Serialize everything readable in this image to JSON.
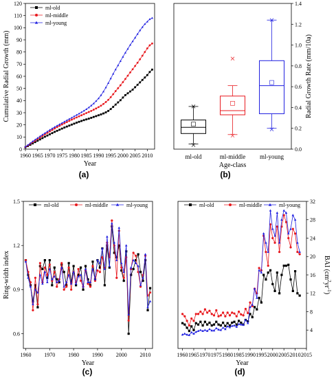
{
  "chart_data": [
    {
      "panel": "(a)",
      "type": "line",
      "xlabel": "Year",
      "ylabel": "Cumulative Radial Growth (mm)",
      "xlim": [
        1960,
        2013
      ],
      "ylim": [
        0,
        120
      ],
      "xticks": [
        1960,
        1965,
        1970,
        1975,
        1980,
        1985,
        1990,
        1995,
        2000,
        2005,
        2010
      ],
      "yticks": [
        0,
        10,
        20,
        30,
        40,
        50,
        60,
        70,
        80,
        90,
        100,
        110,
        120
      ],
      "legend_position": "top-left",
      "x": [
        1960,
        1961,
        1962,
        1963,
        1964,
        1965,
        1966,
        1967,
        1968,
        1969,
        1970,
        1971,
        1972,
        1973,
        1974,
        1975,
        1976,
        1977,
        1978,
        1979,
        1980,
        1981,
        1982,
        1983,
        1984,
        1985,
        1986,
        1987,
        1988,
        1989,
        1990,
        1991,
        1992,
        1993,
        1994,
        1995,
        1996,
        1997,
        1998,
        1999,
        2000,
        2001,
        2002,
        2003,
        2004,
        2005,
        2006,
        2007,
        2008,
        2009,
        2010,
        2011,
        2012
      ],
      "series": [
        {
          "name": "ml-old",
          "color": "#000000",
          "marker": "square",
          "values": [
            1.5,
            2.5,
            3.6,
            4.7,
            5.8,
            6.9,
            8.0,
            9.1,
            10.2,
            11.2,
            12.2,
            13.2,
            14.2,
            15.1,
            16.0,
            16.9,
            17.8,
            18.6,
            19.4,
            20.2,
            21.0,
            21.8,
            22.5,
            23.2,
            23.9,
            24.5,
            25.1,
            25.8,
            26.5,
            27.2,
            27.9,
            28.6,
            29.4,
            30.3,
            31.5,
            33.0,
            34.8,
            36.7,
            38.5,
            40.3,
            42.5,
            44.5,
            46.0,
            47.5,
            49.0,
            51.0,
            53.0,
            55.0,
            57.0,
            59.0,
            61.0,
            63.5,
            65.5
          ]
        },
        {
          "name": "ml-middle",
          "color": "#e8191e",
          "marker": "circle",
          "values": [
            1.8,
            3.0,
            4.4,
            5.7,
            7.0,
            8.3,
            9.6,
            10.9,
            12.2,
            13.4,
            14.6,
            15.8,
            17.0,
            18.1,
            19.2,
            20.3,
            21.3,
            22.3,
            23.3,
            24.3,
            25.2,
            26.1,
            27.0,
            27.9,
            28.8,
            29.7,
            30.6,
            31.5,
            32.5,
            33.5,
            34.6,
            35.8,
            37.2,
            38.8,
            40.6,
            42.8,
            45.2,
            47.8,
            50.2,
            52.6,
            55.2,
            57.8,
            60.5,
            63.2,
            65.8,
            68.5,
            71.2,
            74.0,
            77.0,
            80.0,
            83.0,
            85.5,
            87.0
          ]
        },
        {
          "name": "ml-young",
          "color": "#1f1fe0",
          "marker": "triangle",
          "values": [
            2.0,
            3.4,
            4.9,
            6.4,
            7.8,
            9.2,
            10.6,
            11.9,
            13.2,
            14.5,
            15.8,
            17.0,
            18.2,
            19.3,
            20.4,
            21.5,
            22.6,
            23.7,
            24.8,
            25.9,
            27.0,
            28.1,
            29.2,
            30.4,
            31.6,
            32.9,
            34.3,
            35.9,
            37.6,
            39.6,
            41.8,
            44.4,
            47.4,
            50.8,
            54.4,
            58.2,
            62.0,
            65.6,
            69.0,
            72.5,
            76.0,
            79.4,
            82.6,
            85.8,
            88.8,
            91.8,
            94.8,
            97.8,
            100.5,
            103.0,
            105.0,
            107.0,
            108.0
          ]
        }
      ]
    },
    {
      "panel": "(b)",
      "type": "box",
      "xlabel": "Age-class",
      "ylabel": "Radial Growth Rate (mm/10a)",
      "ylim": [
        0,
        1.4
      ],
      "yticks": [
        0.0,
        0.2,
        0.4,
        0.6,
        0.8,
        1.0,
        1.2,
        1.4
      ],
      "categories": [
        "ml-old",
        "ml-middle",
        "ml-young"
      ],
      "boxes": [
        {
          "name": "ml-old",
          "color": "#000000",
          "whisker_low": 0.05,
          "q1": 0.15,
          "median": 0.21,
          "q3": 0.28,
          "whisker_high": 0.41,
          "mean": 0.24,
          "min": 0.04,
          "max": 0.41
        },
        {
          "name": "ml-middle",
          "color": "#e8191e",
          "whisker_low": 0.14,
          "q1": 0.33,
          "median": 0.37,
          "q3": 0.51,
          "whisker_high": 0.61,
          "mean": 0.44,
          "min": 0.13,
          "max": 0.87
        },
        {
          "name": "ml-young",
          "color": "#1f1fe0",
          "whisker_low": 0.2,
          "q1": 0.34,
          "median": 0.61,
          "q3": 0.85,
          "whisker_high": 1.24,
          "mean": 0.64,
          "min": 0.19,
          "max": 1.24
        }
      ]
    },
    {
      "panel": "(c)",
      "type": "line",
      "xlabel": "Year",
      "ylabel": "Ring-width index",
      "xlim": [
        1959,
        2013
      ],
      "ylim": [
        0.5,
        1.5
      ],
      "xticks": [
        1960,
        1970,
        1980,
        1990,
        2000,
        2010
      ],
      "yticks": [
        0.6,
        0.9,
        1.2,
        1.5
      ],
      "legend_position": "top",
      "x": [
        1960,
        1961,
        1962,
        1963,
        1964,
        1965,
        1966,
        1967,
        1968,
        1969,
        1970,
        1971,
        1972,
        1973,
        1974,
        1975,
        1976,
        1977,
        1978,
        1979,
        1980,
        1981,
        1982,
        1983,
        1984,
        1985,
        1986,
        1987,
        1988,
        1989,
        1990,
        1991,
        1992,
        1993,
        1994,
        1995,
        1996,
        1997,
        1998,
        1999,
        2000,
        2001,
        2002,
        2003,
        2004,
        2005,
        2006,
        2007,
        2008,
        2009,
        2010,
        2011,
        2012
      ],
      "series": [
        {
          "name": "ml-old",
          "color": "#000000",
          "marker": "square",
          "values": [
            1.1,
            1.0,
            0.93,
            0.82,
            0.93,
            0.78,
            1.06,
            1.04,
            1.1,
            0.98,
            1.1,
            0.93,
            1.05,
            0.97,
            0.95,
            1.07,
            1.02,
            0.93,
            1.08,
            0.95,
            1.06,
            0.93,
            1.0,
            1.05,
            0.9,
            1.06,
            0.97,
            0.93,
            1.09,
            0.97,
            1.1,
            1.05,
            1.18,
            0.93,
            1.2,
            1.05,
            1.33,
            1.15,
            1.12,
            1.2,
            1.03,
            0.96,
            1.16,
            0.6,
            1.0,
            1.04,
            1.1,
            1.14,
            1.02,
            0.96,
            1.1,
            0.76,
            0.91
          ]
        },
        {
          "name": "ml-middle",
          "color": "#e8191e",
          "marker": "circle",
          "values": [
            1.1,
            1.02,
            0.95,
            0.76,
            0.98,
            0.8,
            1.08,
            0.95,
            1.05,
            1.0,
            1.07,
            0.96,
            1.02,
            0.92,
            0.97,
            1.08,
            0.9,
            0.92,
            1.05,
            0.9,
            1.02,
            0.95,
            1.04,
            0.96,
            0.92,
            1.03,
            0.94,
            0.92,
            1.06,
            0.96,
            1.03,
            1.02,
            1.12,
            1.05,
            1.22,
            1.12,
            1.37,
            1.2,
            0.98,
            1.3,
            1.05,
            0.98,
            1.12,
            0.69,
            1.04,
            1.15,
            1.13,
            1.02,
            0.92,
            1.0,
            1.13,
            0.86,
            0.88
          ]
        },
        {
          "name": "ml-young",
          "color": "#1f1fe0",
          "marker": "triangle",
          "values": [
            1.09,
            0.98,
            0.92,
            0.8,
            0.9,
            0.88,
            1.0,
            0.94,
            1.02,
            0.95,
            1.04,
            0.97,
            0.99,
            0.95,
            0.96,
            1.05,
            0.92,
            0.95,
            1.0,
            0.94,
            1.02,
            0.94,
            0.99,
            1.0,
            0.92,
            1.04,
            0.95,
            0.95,
            1.04,
            0.97,
            1.1,
            1.08,
            1.18,
            1.04,
            1.26,
            1.06,
            1.35,
            1.22,
            1.1,
            1.32,
            1.08,
            1.02,
            1.2,
            0.73,
            1.05,
            1.1,
            1.08,
            1.06,
            0.93,
            0.98,
            1.14,
            0.78,
            0.82
          ]
        }
      ]
    },
    {
      "panel": "(d)",
      "type": "line",
      "xlabel": "Year",
      "ylabel": "BAI (cm²yr⁻¹)",
      "ylabel_main": "BAI (cm",
      "ylabel_sup1": "2",
      "ylabel_mid": "yr",
      "ylabel_sup2": "-1",
      "ylabel_end": ")",
      "xlim": [
        1958,
        2015
      ],
      "ylim": [
        0,
        32
      ],
      "xticks": [
        1960,
        1965,
        1970,
        1975,
        1980,
        1985,
        1990,
        1995,
        2000,
        2005,
        2010,
        2015
      ],
      "yticks": [
        4,
        8,
        12,
        16,
        20,
        24,
        28,
        32
      ],
      "legend_position": "top",
      "x": [
        1960,
        1961,
        1962,
        1963,
        1964,
        1965,
        1966,
        1967,
        1968,
        1969,
        1970,
        1971,
        1972,
        1973,
        1974,
        1975,
        1976,
        1977,
        1978,
        1979,
        1980,
        1981,
        1982,
        1983,
        1984,
        1985,
        1986,
        1987,
        1988,
        1989,
        1990,
        1991,
        1992,
        1993,
        1994,
        1995,
        1996,
        1997,
        1998,
        1999,
        2000,
        2001,
        2002,
        2003,
        2004,
        2005,
        2006,
        2007,
        2008,
        2009,
        2010,
        2011,
        2012
      ],
      "series": [
        {
          "name": "ml-old",
          "color": "#000000",
          "marker": "square",
          "values": [
            5.5,
            5.2,
            4.5,
            3.8,
            4.8,
            4.0,
            5.5,
            5.2,
            5.8,
            5.0,
            5.8,
            5.2,
            5.6,
            5.0,
            5.2,
            5.8,
            5.2,
            5.0,
            5.6,
            4.9,
            5.5,
            5.0,
            5.6,
            5.8,
            5.2,
            6.0,
            5.6,
            5.2,
            6.2,
            5.9,
            7.5,
            6.8,
            9.0,
            8.5,
            11.0,
            10.0,
            16.0,
            15.0,
            16.5,
            17.0,
            14.0,
            12.5,
            16.5,
            12.0,
            16.0,
            18.0,
            18.0,
            18.2,
            15.0,
            12.5,
            16.8,
            12.0,
            11.5
          ]
        },
        {
          "name": "ml-middle",
          "color": "#e8191e",
          "marker": "circle",
          "values": [
            7.5,
            7.0,
            6.0,
            5.0,
            6.5,
            6.0,
            7.5,
            7.5,
            8.0,
            7.5,
            8.5,
            7.8,
            8.2,
            7.5,
            7.2,
            8.3,
            7.0,
            7.2,
            7.8,
            7.0,
            7.8,
            7.2,
            7.8,
            7.6,
            7.0,
            8.0,
            7.4,
            7.2,
            8.6,
            7.7,
            10.0,
            9.2,
            13.0,
            12.0,
            17.5,
            17.0,
            24.5,
            21.0,
            18.0,
            27.0,
            24.0,
            23.0,
            26.5,
            21.0,
            26.5,
            29.0,
            27.5,
            24.0,
            22.0,
            26.0,
            25.0,
            21.0,
            20.5
          ]
        },
        {
          "name": "ml-young",
          "color": "#1f1fe0",
          "marker": "triangle",
          "values": [
            3.0,
            3.2,
            3.0,
            2.9,
            3.5,
            3.2,
            3.6,
            3.8,
            4.0,
            3.8,
            4.0,
            3.8,
            4.2,
            3.9,
            3.9,
            4.4,
            4.1,
            4.0,
            4.5,
            4.2,
            4.8,
            4.6,
            4.9,
            5.0,
            4.7,
            5.3,
            5.2,
            5.1,
            6.2,
            5.5,
            9.0,
            9.5,
            13.0,
            11.0,
            17.0,
            16.5,
            25.0,
            23.0,
            21.0,
            30.0,
            26.0,
            24.5,
            29.5,
            23.0,
            28.0,
            30.0,
            29.5,
            25.0,
            26.0,
            29.0,
            28.0,
            23.0,
            21.0
          ]
        }
      ]
    }
  ],
  "labels": {
    "a": "(a)",
    "b": "(b)",
    "c": "(c)",
    "d": "(d)"
  }
}
